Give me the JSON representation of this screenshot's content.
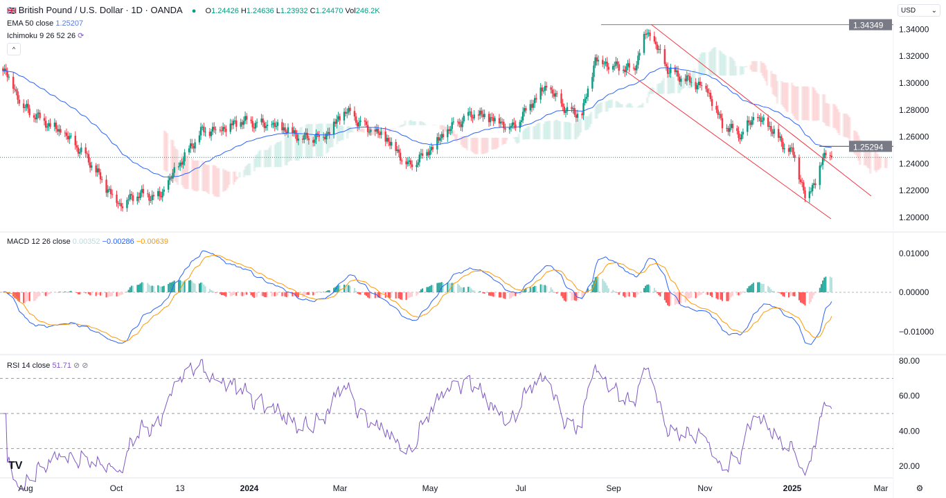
{
  "header": {
    "symbol": "British Pound / U.S. Dollar · 1D · OANDA",
    "open_label": "O",
    "open": "1.24426",
    "high_label": "H",
    "high": "1.24636",
    "low_label": "L",
    "low": "1.23932",
    "close_label": "C",
    "close": "1.24470",
    "vol_label": "Vol",
    "vol": "246.2K"
  },
  "ema": {
    "label": "EMA 50 close",
    "value": "1.25207"
  },
  "ichimoku": {
    "label": "Ichimoku 9 26 52 26"
  },
  "macd": {
    "label": "MACD 12 26 close",
    "hist": "0.00352",
    "macd": "−0.00286",
    "signal": "−0.00639"
  },
  "rsi": {
    "label": "RSI 14 close",
    "value": "51.71"
  },
  "currency": "USD",
  "logo": "TV",
  "colors": {
    "up": "#089981",
    "down": "#f23645",
    "ema": "#2962ff",
    "channel": "#f23645",
    "macd": "#2962ff",
    "signal": "#ff9800",
    "rsi": "#7e57c2"
  },
  "chart_data": {
    "type": "candlestick",
    "price_axis": {
      "ticks": [
        "1.20000",
        "1.22000",
        "1.24000",
        "1.26000",
        "1.28000",
        "1.30000",
        "1.32000",
        "1.34000"
      ],
      "range": [
        1.19,
        1.35
      ]
    },
    "price_labels": {
      "high_line": "1.34349",
      "resistance_line": "1.25294"
    },
    "x_ticks": [
      "Aug",
      "Oct",
      "13",
      "2024",
      "Mar",
      "May",
      "Jul",
      "Sep",
      "Nov",
      "2025",
      "Mar"
    ],
    "closes": [
      [
        "2023-07-17",
        1.3128
      ],
      [
        "2023-07-31",
        1.282
      ],
      [
        "2023-08-14",
        1.2716
      ],
      [
        "2023-08-28",
        1.2613
      ],
      [
        "2023-09-11",
        1.2458
      ],
      [
        "2023-09-25",
        1.2227
      ],
      [
        "2023-10-04",
        1.2098
      ],
      [
        "2023-10-17",
        1.2175
      ],
      [
        "2023-10-31",
        1.215
      ],
      [
        "2023-11-14",
        1.2407
      ],
      [
        "2023-11-28",
        1.2639
      ],
      [
        "2023-12-12",
        1.2665
      ],
      [
        "2023-12-26",
        1.2716
      ],
      [
        "2024-01-09",
        1.269
      ],
      [
        "2024-01-23",
        1.2665
      ],
      [
        "2024-02-06",
        1.2587
      ],
      [
        "2024-02-20",
        1.2613
      ],
      [
        "2024-03-05",
        1.2793
      ],
      [
        "2024-03-19",
        1.2665
      ],
      [
        "2024-04-02",
        1.2587
      ],
      [
        "2024-04-17",
        1.2381
      ],
      [
        "2024-05-01",
        1.251
      ],
      [
        "2024-05-15",
        1.2665
      ],
      [
        "2024-05-29",
        1.2767
      ],
      [
        "2024-06-12",
        1.2742
      ],
      [
        "2024-06-26",
        1.2665
      ],
      [
        "2024-07-10",
        1.287
      ],
      [
        "2024-07-19",
        1.2973
      ],
      [
        "2024-08-02",
        1.2793
      ],
      [
        "2024-08-12",
        1.2767
      ],
      [
        "2024-08-21",
        1.318
      ],
      [
        "2024-09-02",
        1.3128
      ],
      [
        "2024-09-16",
        1.3102
      ],
      [
        "2024-09-25",
        1.3385
      ],
      [
        "2024-10-02",
        1.3256
      ],
      [
        "2024-10-09",
        1.3102
      ],
      [
        "2024-10-21",
        1.3025
      ],
      [
        "2024-11-04",
        1.2973
      ],
      [
        "2024-11-15",
        1.269
      ],
      [
        "2024-11-28",
        1.2613
      ],
      [
        "2024-12-06",
        1.2742
      ],
      [
        "2024-12-16",
        1.269
      ],
      [
        "2024-12-27",
        1.2536
      ],
      [
        "2025-01-03",
        1.2458
      ],
      [
        "2025-01-10",
        1.215
      ],
      [
        "2025-01-17",
        1.2278
      ],
      [
        "2025-01-24",
        1.2484
      ],
      [
        "2025-01-28",
        1.2447
      ]
    ],
    "macd_axis": {
      "ticks": [
        "0.01000",
        "0.00000",
        "−0.01000"
      ]
    },
    "rsi_axis": {
      "ticks": [
        "80.00",
        "60.00",
        "40.00",
        "20.00"
      ],
      "levels": [
        70,
        50,
        30
      ]
    }
  }
}
